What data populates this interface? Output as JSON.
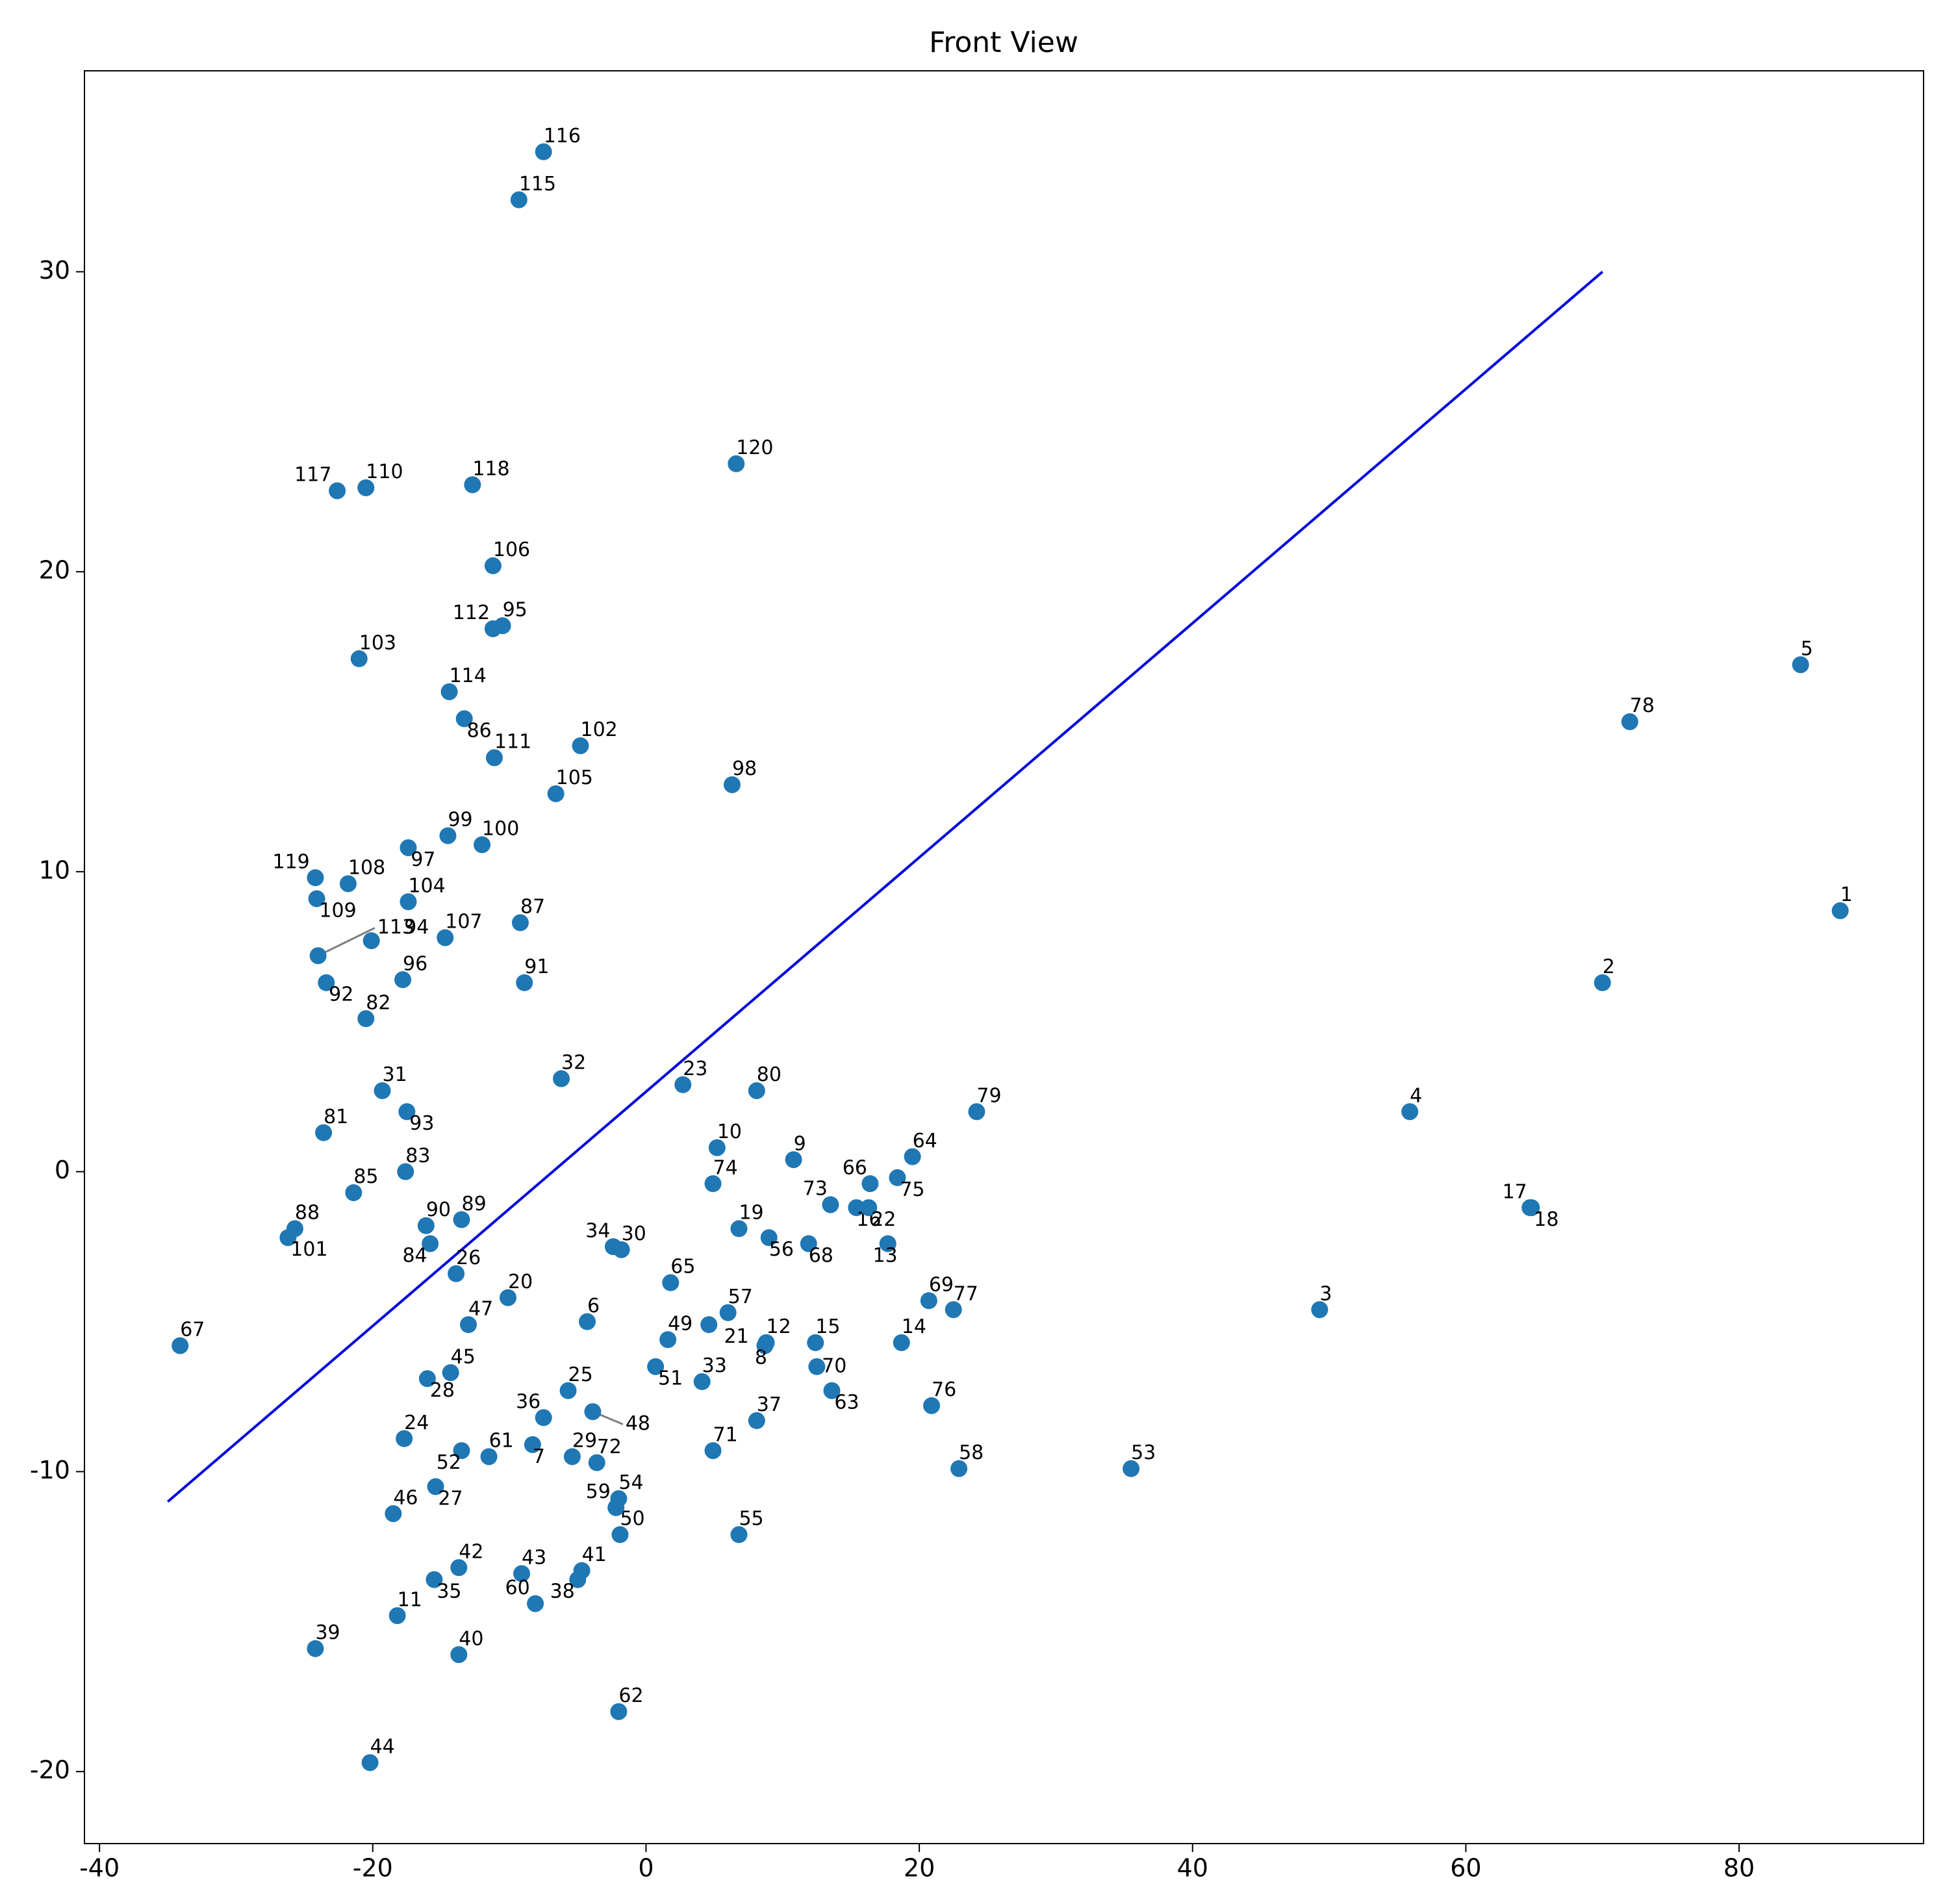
{
  "chart_data": {
    "type": "scatter",
    "title": "Front View",
    "x": [
      87.4,
      70.0,
      49.3,
      55.9,
      84.5,
      -4.3,
      -8.3,
      8.7,
      10.8,
      5.2,
      -18.2,
      8.8,
      17.7,
      18.7,
      12.4,
      15.4,
      64.7,
      64.8,
      6.8,
      -10.1,
      4.6,
      16.3,
      2.7,
      -17.7,
      -5.7,
      -13.9,
      -15.4,
      -16.0,
      -5.4,
      -1.8,
      -19.3,
      -6.2,
      4.1,
      -2.4,
      -15.5,
      -7.5,
      8.1,
      -5.0,
      -24.2,
      -13.7,
      -4.7,
      -13.7,
      -9.1,
      -20.2,
      -14.3,
      -18.5,
      -13.0,
      -3.9,
      1.6,
      -1.9,
      0.7,
      -13.5,
      35.5,
      -2.0,
      6.8,
      9.0,
      6.0,
      22.9,
      -2.2,
      -8.1,
      -11.5,
      -2.0,
      13.6,
      19.5,
      1.8,
      16.4,
      -34.1,
      11.9,
      20.7,
      12.5,
      4.9,
      -3.6,
      13.5,
      4.9,
      18.4,
      20.9,
      22.5,
      72.0,
      24.2,
      8.1,
      -23.6,
      -20.5,
      -17.6,
      -15.8,
      -21.4,
      -13.3,
      -9.2,
      -25.7,
      -13.5,
      -16.1,
      -8.9,
      -23.4,
      -17.5,
      -20.1,
      -10.5,
      -17.8,
      -17.4,
      6.3,
      -14.5,
      -12.0,
      -26.2,
      -4.8,
      -21.0,
      -17.4,
      -6.6,
      -11.2,
      -14.7,
      -21.8,
      -24.1,
      -20.5,
      -11.1,
      -11.2,
      -24.0,
      -14.4,
      -9.3,
      -7.5,
      -22.6,
      -12.7,
      -24.2,
      6.6
    ],
    "y": [
      8.7,
      6.3,
      -4.6,
      2.0,
      16.9,
      -5.0,
      -9.1,
      -5.8,
      0.4,
      0.8,
      -14.8,
      -5.7,
      -2.4,
      -5.7,
      -5.7,
      -1.2,
      -1.2,
      -1.2,
      -1.9,
      -4.2,
      -5.1,
      -1.2,
      2.9,
      -8.9,
      -7.3,
      -3.4,
      -10.5,
      -6.9,
      -9.5,
      -2.6,
      2.7,
      3.1,
      -7.0,
      -2.5,
      -13.6,
      -8.2,
      -8.3,
      -13.6,
      -15.9,
      -16.1,
      -13.3,
      -13.2,
      -13.4,
      -19.7,
      -6.7,
      -11.4,
      -5.1,
      -8.0,
      -5.6,
      -12.1,
      -6.5,
      -9.3,
      -9.9,
      -10.9,
      -12.1,
      -2.2,
      -4.7,
      -9.9,
      -11.2,
      -14.4,
      -9.5,
      -18.0,
      -7.3,
      0.5,
      -3.7,
      -0.4,
      -5.8,
      -2.4,
      -4.3,
      -6.5,
      -9.3,
      -9.7,
      -1.1,
      -0.4,
      -0.2,
      -7.8,
      -4.6,
      15.0,
      2.0,
      2.7,
      1.3,
      5.1,
      0.0,
      -2.4,
      -0.7,
      15.1,
      8.3,
      -1.9,
      -1.6,
      -1.8,
      6.3,
      6.3,
      2.0,
      7.7,
      18.2,
      6.4,
      10.8,
      12.9,
      11.2,
      10.9,
      -2.2,
      14.2,
      17.1,
      9.0,
      12.6,
      20.2,
      7.8,
      9.6,
      9.1,
      22.8,
      13.8,
      18.1,
      7.2,
      16.0,
      32.4,
      34.0,
      22.7,
      22.9,
      9.8,
      23.6
    ],
    "labels": [
      "1",
      "2",
      "3",
      "4",
      "5",
      "6",
      "7",
      "8",
      "9",
      "10",
      "11",
      "12",
      "13",
      "14",
      "15",
      "16",
      "17",
      "18",
      "19",
      "20",
      "21",
      "22",
      "23",
      "24",
      "25",
      "26",
      "27",
      "28",
      "29",
      "30",
      "31",
      "32",
      "33",
      "34",
      "35",
      "36",
      "37",
      "38",
      "39",
      "40",
      "41",
      "42",
      "43",
      "44",
      "45",
      "46",
      "47",
      "48",
      "49",
      "50",
      "51",
      "52",
      "53",
      "54",
      "55",
      "56",
      "57",
      "58",
      "59",
      "60",
      "61",
      "62",
      "63",
      "64",
      "65",
      "66",
      "67",
      "68",
      "69",
      "70",
      "71",
      "72",
      "73",
      "74",
      "75",
      "76",
      "77",
      "78",
      "79",
      "80",
      "81",
      "82",
      "83",
      "84",
      "85",
      "86",
      "87",
      "88",
      "89",
      "90",
      "91",
      "92",
      "93",
      "94",
      "95",
      "96",
      "97",
      "98",
      "99",
      "100",
      "101",
      "102",
      "103",
      "104",
      "105",
      "106",
      "107",
      "108",
      "109",
      "110",
      "111",
      "112",
      "113",
      "114",
      "115",
      "116",
      "117",
      "118",
      "119",
      "120"
    ],
    "color": "#1f77b4",
    "line": {
      "x": [
        -35,
        70
      ],
      "y": [
        -11,
        30
      ],
      "color": "#0000dd"
    },
    "xlim": [
      -41.1,
      93.5
    ],
    "ylim": [
      -22.4,
      36.7
    ],
    "xticks": [
      -40,
      -20,
      0,
      20,
      40,
      60,
      80
    ],
    "yticks": [
      -20,
      -10,
      0,
      10,
      20,
      30
    ]
  }
}
